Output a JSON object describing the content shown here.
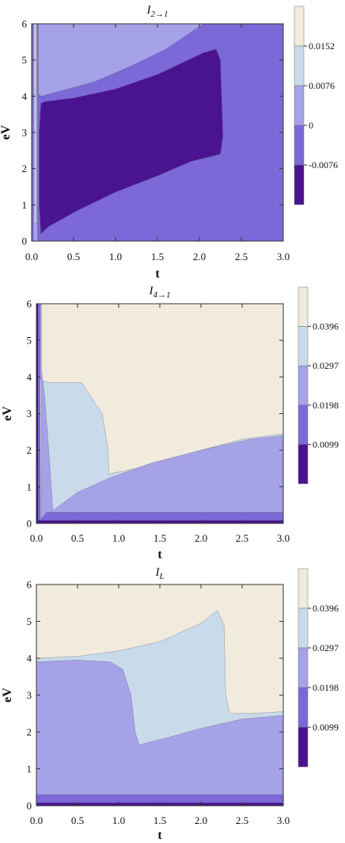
{
  "chart_data": [
    {
      "type": "contour",
      "title": "I",
      "title_sub": "2→1",
      "xlabel": "t",
      "ylabel": "eV",
      "xlim": [
        0,
        3
      ],
      "ylim": [
        0,
        6
      ],
      "xticks": [
        "0.0",
        "0.5",
        "1.0",
        "1.5",
        "2.0",
        "2.5",
        "3.0"
      ],
      "yticks": [
        "0",
        "1",
        "2",
        "3",
        "4",
        "5",
        "6"
      ],
      "legend_ticks": [
        "0.0152",
        "0.0076",
        "0",
        "-0.0076"
      ],
      "level_colors": [
        "#4a1490",
        "#7c68d6",
        "#a6a2e8",
        "#c9dbea",
        "#f1ebde"
      ],
      "regions": [
        {
          "level": 1,
          "points": [
            [
              0,
              0
            ],
            [
              3,
              0
            ],
            [
              3,
              6
            ],
            [
              0,
              6
            ]
          ]
        },
        {
          "level": 2,
          "points": [
            [
              0.08,
              4.05
            ],
            [
              0.12,
              4.0
            ],
            [
              0.35,
              4.15
            ],
            [
              0.75,
              4.4
            ],
            [
              1.2,
              4.85
            ],
            [
              1.6,
              5.3
            ],
            [
              1.95,
              5.85
            ],
            [
              2.05,
              6
            ],
            [
              0.08,
              6
            ]
          ]
        },
        {
          "level": 2,
          "points": [
            [
              0.02,
              0
            ],
            [
              0.07,
              0
            ],
            [
              0.07,
              6
            ],
            [
              0.02,
              6
            ]
          ]
        },
        {
          "level": 3,
          "points": [
            [
              0.03,
              0.5
            ],
            [
              0.055,
              0.5
            ],
            [
              0.055,
              6
            ],
            [
              0.03,
              6
            ]
          ]
        },
        {
          "level": 4,
          "points": [
            [
              0.03,
              4.05
            ],
            [
              0.05,
              4.05
            ],
            [
              0.05,
              6
            ],
            [
              0.03,
              6
            ]
          ]
        },
        {
          "level": 0,
          "points": [
            [
              0.11,
              0.2
            ],
            [
              0.2,
              0.4
            ],
            [
              0.55,
              0.85
            ],
            [
              1.0,
              1.35
            ],
            [
              1.5,
              1.8
            ],
            [
              1.9,
              2.2
            ],
            [
              2.25,
              2.4
            ],
            [
              2.28,
              2.9
            ],
            [
              2.25,
              5.0
            ],
            [
              2.2,
              5.3
            ],
            [
              2.05,
              5.2
            ],
            [
              1.5,
              4.6
            ],
            [
              1.0,
              4.2
            ],
            [
              0.5,
              3.95
            ],
            [
              0.15,
              3.85
            ],
            [
              0.11,
              3.8
            ],
            [
              0.09,
              3.0
            ],
            [
              0.09,
              1.0
            ]
          ]
        }
      ]
    },
    {
      "type": "contour",
      "title": "I",
      "title_sub": "4→1",
      "xlabel": "t",
      "ylabel": "eV",
      "xlim": [
        0,
        3
      ],
      "ylim": [
        0,
        6
      ],
      "xticks": [
        "0.0",
        "0.5",
        "1.0",
        "1.5",
        "2.0",
        "2.5",
        "3.0"
      ],
      "yticks": [
        "0",
        "1",
        "2",
        "3",
        "4",
        "5",
        "6"
      ],
      "legend_ticks": [
        "0.0396",
        "0.0297",
        "0.0198",
        "0.0099"
      ],
      "level_colors": [
        "#4a1490",
        "#7c68d6",
        "#a6a2e8",
        "#c9dbea",
        "#f1ebde"
      ],
      "regions": [
        {
          "level": 4,
          "points": [
            [
              0,
              0
            ],
            [
              3,
              0
            ],
            [
              3,
              6
            ],
            [
              0,
              6
            ]
          ]
        },
        {
          "level": 3,
          "points": [
            [
              0.06,
              6
            ],
            [
              0.06,
              3.9
            ],
            [
              0.15,
              3.85
            ],
            [
              0.55,
              3.85
            ],
            [
              0.62,
              3.6
            ],
            [
              0.8,
              3.0
            ],
            [
              0.87,
              2.0
            ],
            [
              0.88,
              1.35
            ],
            [
              1.2,
              1.5
            ],
            [
              1.6,
              1.75
            ],
            [
              2.0,
              2.0
            ],
            [
              2.5,
              2.3
            ],
            [
              3,
              2.45
            ],
            [
              3,
              0.3
            ],
            [
              0.16,
              0.3
            ],
            [
              0.14,
              0.15
            ],
            [
              0.1,
              0.1
            ],
            [
              0.03,
              0.1
            ],
            [
              0.03,
              6
            ]
          ]
        },
        {
          "level": 2,
          "points": [
            [
              0.06,
              6
            ],
            [
              0.06,
              4.2
            ],
            [
              0.1,
              3.5
            ],
            [
              0.15,
              2.0
            ],
            [
              0.2,
              0.35
            ],
            [
              0.5,
              0.85
            ],
            [
              0.9,
              1.25
            ],
            [
              1.4,
              1.65
            ],
            [
              2.0,
              2.0
            ],
            [
              2.6,
              2.3
            ],
            [
              3,
              2.4
            ],
            [
              3,
              0.3
            ],
            [
              0.16,
              0.3
            ],
            [
              0.1,
              0.08
            ],
            [
              0.06,
              0.05
            ],
            [
              0.06,
              3.9
            ],
            [
              0.04,
              4.0
            ],
            [
              0.04,
              6
            ]
          ]
        },
        {
          "level": 1,
          "points": [
            [
              0,
              0
            ],
            [
              3,
              0
            ],
            [
              3,
              0.3
            ],
            [
              0.12,
              0.3
            ],
            [
              0.07,
              0.15
            ],
            [
              0.05,
              0.1
            ],
            [
              0.04,
              6
            ],
            [
              0.01,
              6
            ],
            [
              0.01,
              0
            ]
          ]
        },
        {
          "level": 0,
          "points": [
            [
              0,
              0
            ],
            [
              3,
              0
            ],
            [
              3,
              0.08
            ],
            [
              0.02,
              0.08
            ],
            [
              0.02,
              6
            ],
            [
              0,
              6
            ]
          ]
        }
      ]
    },
    {
      "type": "contour",
      "title": "I",
      "title_sub": "L",
      "xlabel": "t",
      "ylabel": "eV",
      "xlim": [
        0,
        3
      ],
      "ylim": [
        0,
        6
      ],
      "xticks": [
        "0.0",
        "0.5",
        "1.0",
        "1.5",
        "2.0",
        "2.5",
        "3.0"
      ],
      "yticks": [
        "0",
        "1",
        "2",
        "3",
        "4",
        "5",
        "6"
      ],
      "legend_ticks": [
        "0.0396",
        "0.0297",
        "0.0198",
        "0.0099"
      ],
      "level_colors": [
        "#4a1490",
        "#7c68d6",
        "#a6a2e8",
        "#c9dbea",
        "#f1ebde"
      ],
      "regions": [
        {
          "level": 4,
          "points": [
            [
              0,
              0
            ],
            [
              3,
              0
            ],
            [
              3,
              6
            ],
            [
              0,
              6
            ]
          ]
        },
        {
          "level": 3,
          "points": [
            [
              0,
              4.0
            ],
            [
              0.5,
              4.05
            ],
            [
              1.0,
              4.2
            ],
            [
              1.5,
              4.45
            ],
            [
              2.0,
              4.95
            ],
            [
              2.2,
              5.3
            ],
            [
              2.28,
              4.9
            ],
            [
              2.3,
              3.0
            ],
            [
              2.35,
              2.5
            ],
            [
              2.6,
              2.5
            ],
            [
              3,
              2.55
            ],
            [
              3,
              0
            ],
            [
              0,
              0
            ]
          ]
        },
        {
          "level": 2,
          "points": [
            [
              0,
              3.9
            ],
            [
              0.5,
              3.95
            ],
            [
              0.9,
              3.9
            ],
            [
              1.05,
              3.7
            ],
            [
              1.15,
              3.0
            ],
            [
              1.2,
              2.0
            ],
            [
              1.25,
              1.65
            ],
            [
              1.6,
              1.85
            ],
            [
              2.0,
              2.1
            ],
            [
              2.5,
              2.35
            ],
            [
              3,
              2.45
            ],
            [
              3,
              0
            ],
            [
              0,
              0
            ]
          ]
        },
        {
          "level": 1,
          "points": [
            [
              0,
              0
            ],
            [
              3,
              0
            ],
            [
              3,
              0.3
            ],
            [
              0,
              0.3
            ]
          ]
        },
        {
          "level": 0,
          "points": [
            [
              0,
              0
            ],
            [
              3,
              0
            ],
            [
              3,
              0.08
            ],
            [
              0,
              0.08
            ]
          ]
        }
      ]
    }
  ]
}
